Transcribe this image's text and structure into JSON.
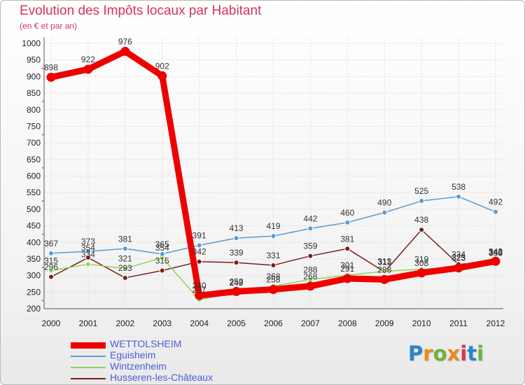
{
  "header": {
    "title": "Evolution des Impôts locaux par Habitant",
    "subtitle": "(en € et par an)"
  },
  "logo": {
    "text": "Proxiti",
    "colors": [
      "#2a86c9",
      "#ef8a1c",
      "#6cb33f",
      "#ef8a1c",
      "#d6335a",
      "#2a86c9",
      "#6cb33f"
    ]
  },
  "chart_data": {
    "type": "line",
    "title": "Evolution des Impôts locaux par Habitant",
    "subtitle": "(en € et par an)",
    "xlabel": "",
    "ylabel": "",
    "ylim": [
      200,
      1000
    ],
    "yticks": [
      200,
      250,
      300,
      350,
      400,
      450,
      500,
      550,
      600,
      650,
      700,
      750,
      800,
      850,
      900,
      950,
      1000
    ],
    "categories": [
      "2000",
      "2001",
      "2002",
      "2003",
      "2004",
      "2005",
      "2006",
      "2007",
      "2008",
      "2009",
      "2010",
      "2011",
      "2012"
    ],
    "legend_position": "bottom-left",
    "series": [
      {
        "name": "Husseren-les-Châteaux",
        "color": "#7a1e1e",
        "values": [
          296,
          354,
          293,
          315,
          342,
          339,
          331,
          359,
          381,
          311,
          438,
          334,
          340
        ],
        "labels": [
          "296",
          "354",
          "293",
          "315",
          "342",
          "339",
          "331",
          "359",
          "381",
          "311",
          "438",
          "334",
          "340"
        ]
      },
      {
        "name": "Wintzenheim",
        "color": "#8fd45a",
        "values": [
          315,
          334,
          321,
          354,
          227,
          249,
          268,
          288,
          301,
          313,
          319,
          325,
          338
        ],
        "labels": [
          "315",
          "334",
          "321",
          "354",
          "227",
          "249",
          "268",
          "288",
          "301",
          "313",
          "319",
          "325",
          "338"
        ]
      },
      {
        "name": "Eguisheim",
        "color": "#5b9bd0",
        "values": [
          367,
          373,
          381,
          365,
          391,
          413,
          419,
          442,
          460,
          490,
          525,
          538,
          492
        ],
        "labels": [
          "367",
          "373",
          "381",
          "365",
          "391",
          "413",
          "419",
          "442",
          "460",
          "490",
          "525",
          "538",
          "492"
        ]
      },
      {
        "name": "WETTOLSHEIM",
        "color": "#ee0000",
        "values": [
          898,
          922,
          976,
          902,
          240,
          252,
          258,
          268,
          291,
          288,
          308,
          323,
          343
        ],
        "labels": [
          "898",
          "922",
          "976",
          "902",
          "240",
          "252",
          "258",
          "268",
          "291",
          "288",
          "308",
          "323",
          "343"
        ]
      }
    ]
  },
  "legend": {
    "items": [
      {
        "name": "WETTOLSHEIM",
        "color": "#ee0000",
        "thickness": 9
      },
      {
        "name": "Eguisheim",
        "color": "#5b9bd0",
        "thickness": 2
      },
      {
        "name": "Wintzenheim",
        "color": "#8fd45a",
        "thickness": 2
      },
      {
        "name": "Husseren-les-Châteaux",
        "color": "#7a1e1e",
        "thickness": 2
      }
    ]
  }
}
